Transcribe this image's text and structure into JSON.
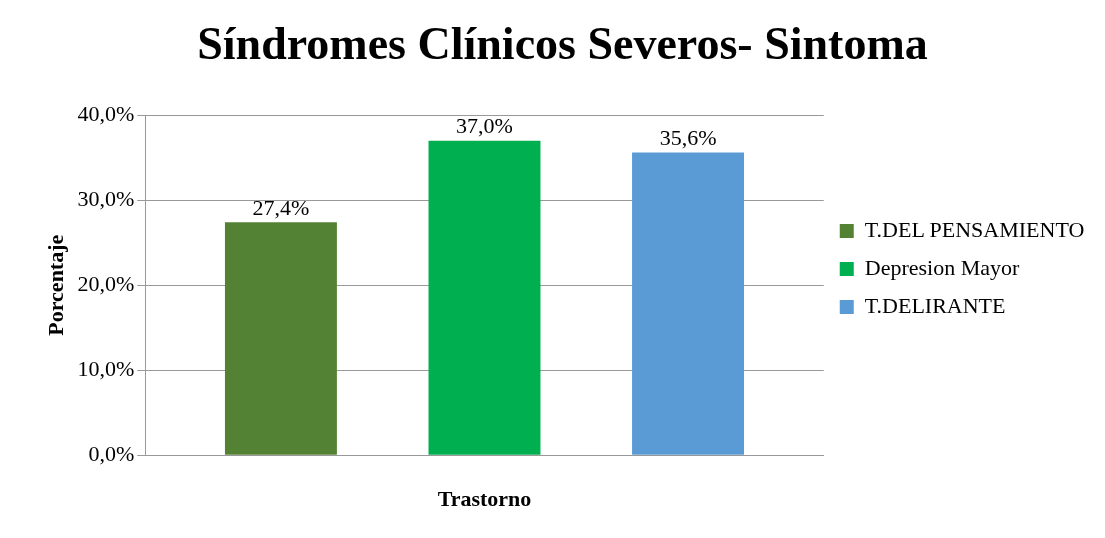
{
  "chart_data": {
    "type": "bar",
    "title": "Síndromes Clínicos Severos- Sintoma",
    "xlabel": "Trastorno",
    "ylabel": "Porcentaje",
    "categories": [
      null
    ],
    "series": [
      {
        "name": "T.DEL PENSAMIENTO",
        "color": "#548235",
        "values": [
          27.4
        ],
        "value_labels": [
          "27,4%"
        ]
      },
      {
        "name": "Depresion Mayor",
        "color": "#00b050",
        "values": [
          37.0
        ],
        "value_labels": [
          "37,0%"
        ]
      },
      {
        "name": "T.DELIRANTE",
        "color": "#5b9bd5",
        "values": [
          35.6
        ],
        "value_labels": [
          "35,6%"
        ]
      }
    ],
    "ylim": [
      0,
      40
    ],
    "yticks": [
      {
        "value": 0,
        "label": "0,0%"
      },
      {
        "value": 10,
        "label": "10,0%"
      },
      {
        "value": 20,
        "label": "20,0%"
      },
      {
        "value": 30,
        "label": "30,0%"
      },
      {
        "value": 40,
        "label": "40,0%"
      }
    ],
    "grid": "y",
    "legend": "right"
  }
}
